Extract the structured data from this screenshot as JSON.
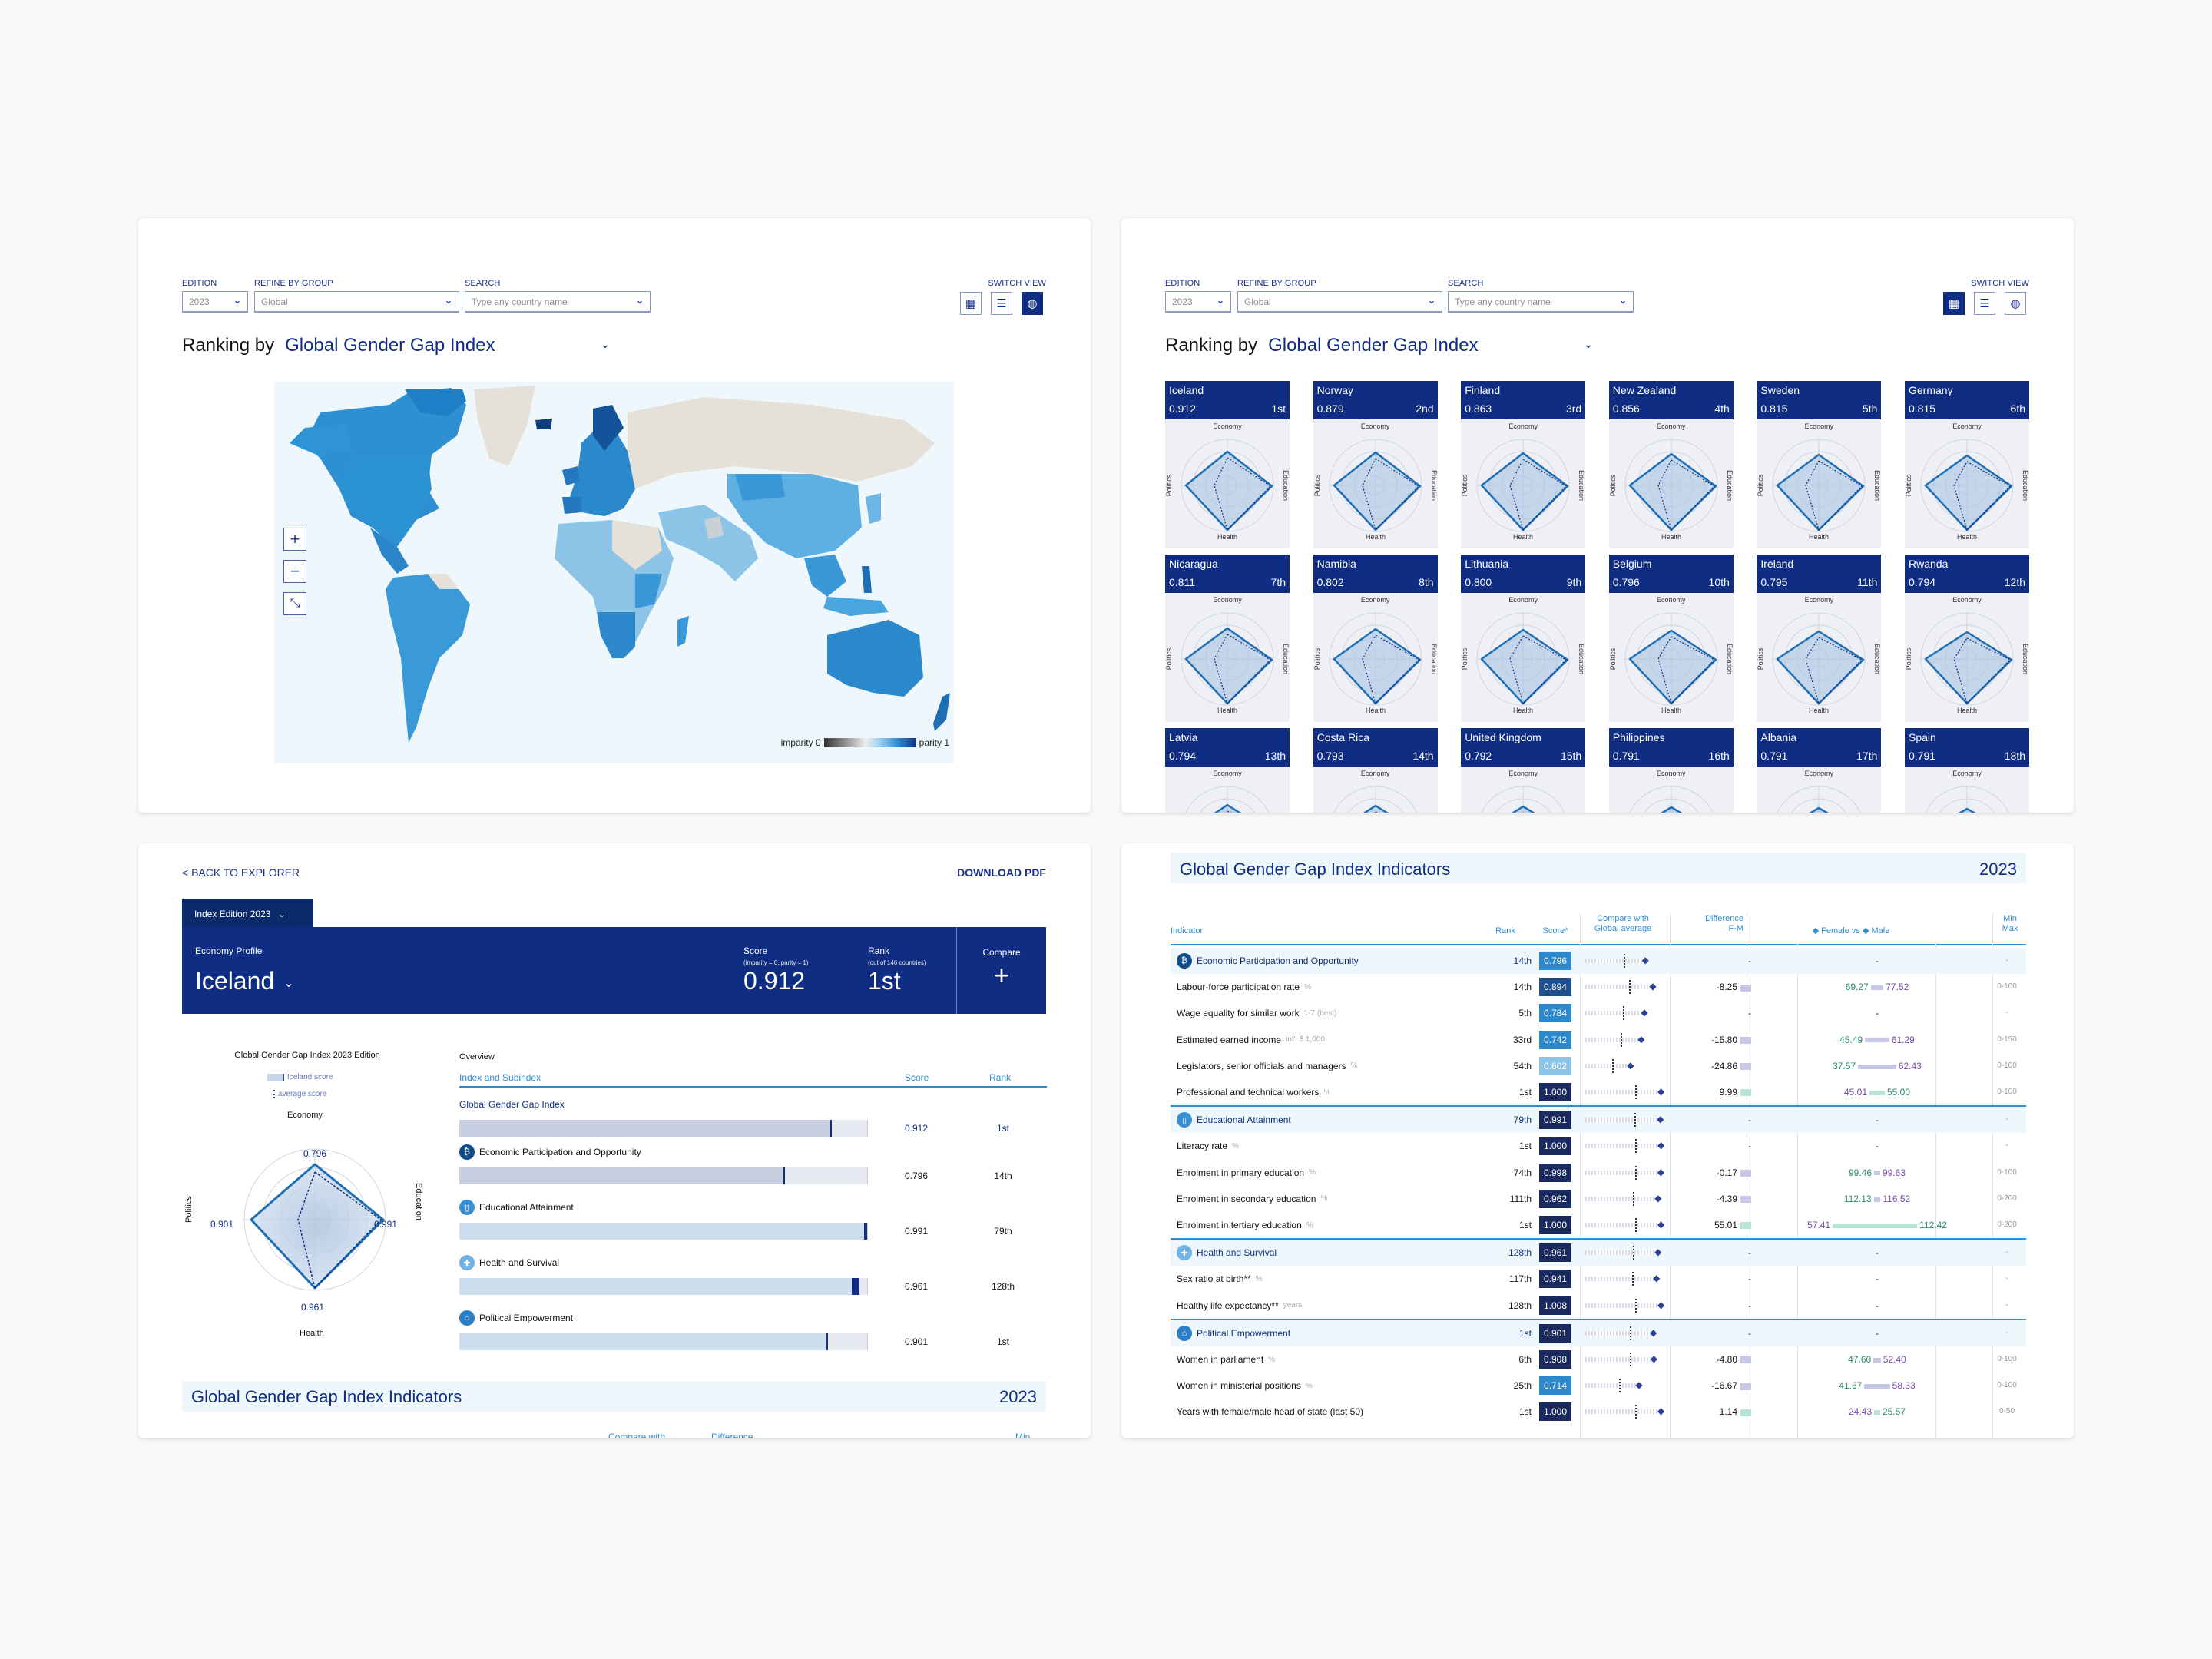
{
  "explorer": {
    "edition_label": "EDITION",
    "edition_value": "2023",
    "group_label": "REFINE BY GROUP",
    "group_value": "Global",
    "search_label": "SEARCH",
    "search_placeholder": "Type any country name",
    "switch_view_label": "SWITCH VIEW",
    "view_icons": [
      "grid-icon",
      "list-icon",
      "globe-icon"
    ],
    "ranking_prefix": "Ranking by",
    "ranking_value": "Global Gender Gap Index"
  },
  "map": {
    "legend_low": "imparity 0",
    "legend_high": "parity 1",
    "zoom_in": "+",
    "zoom_out": "−",
    "reset": "⤡",
    "colors": {
      "land_no_data": "#e6e1d8",
      "ocean": "#eef7fb",
      "high": "#0f4c8a",
      "mid": "#2b8fd6",
      "low": "#8cc4e8"
    }
  },
  "cards": [
    {
      "name": "Iceland",
      "score": "0.912",
      "rank": "1st"
    },
    {
      "name": "Norway",
      "score": "0.879",
      "rank": "2nd"
    },
    {
      "name": "Finland",
      "score": "0.863",
      "rank": "3rd"
    },
    {
      "name": "New Zealand",
      "score": "0.856",
      "rank": "4th"
    },
    {
      "name": "Sweden",
      "score": "0.815",
      "rank": "5th"
    },
    {
      "name": "Germany",
      "score": "0.815",
      "rank": "6th"
    },
    {
      "name": "Nicaragua",
      "score": "0.811",
      "rank": "7th"
    },
    {
      "name": "Namibia",
      "score": "0.802",
      "rank": "8th"
    },
    {
      "name": "Lithuania",
      "score": "0.800",
      "rank": "9th"
    },
    {
      "name": "Belgium",
      "score": "0.796",
      "rank": "10th"
    },
    {
      "name": "Ireland",
      "score": "0.795",
      "rank": "11th"
    },
    {
      "name": "Rwanda",
      "score": "0.794",
      "rank": "12th"
    },
    {
      "name": "Latvia",
      "score": "0.794",
      "rank": "13th"
    },
    {
      "name": "Costa Rica",
      "score": "0.793",
      "rank": "14th"
    },
    {
      "name": "United Kingdom",
      "score": "0.792",
      "rank": "15th"
    },
    {
      "name": "Philippines",
      "score": "0.791",
      "rank": "16th"
    },
    {
      "name": "Albania",
      "score": "0.791",
      "rank": "17th"
    },
    {
      "name": "Spain",
      "score": "0.791",
      "rank": "18th"
    }
  ],
  "radar_axes": {
    "top": "Economy",
    "right": "Education",
    "bottom": "Health",
    "left": "Politics"
  },
  "profile": {
    "back_link": "< BACK TO EXPLORER",
    "download": "DOWNLOAD PDF",
    "edition_tab": "Index Edition  2023",
    "economy_profile_label": "Economy Profile",
    "country": "Iceland",
    "score_label": "Score",
    "score_sub": "(imparity = 0, parity = 1)",
    "score_value": "0.912",
    "rank_label": "Rank",
    "rank_sub": "(out of 146 countries)",
    "rank_value": "1st",
    "compare_label": "Compare",
    "compare_icon": "+",
    "radar": {
      "title_bold": "Global Gender Gap Index",
      "title_rest": " 2023 Edition",
      "legend_country": "Iceland score",
      "legend_avg": "average score",
      "economy": "0.796",
      "education": "0.991",
      "health": "0.961",
      "politics": "0.901"
    },
    "overview": {
      "title": "Overview",
      "col_index": "Index and Subindex",
      "col_score": "Score",
      "col_rank": "Rank",
      "rows": [
        {
          "name": "Global Gender Gap Index",
          "score": "0.912",
          "rank": "1st"
        },
        {
          "name": "Economic Participation and Opportunity",
          "score": "0.796",
          "rank": "14th"
        },
        {
          "name": "Educational Attainment",
          "score": "0.991",
          "rank": "79th"
        },
        {
          "name": "Health and Survival",
          "score": "0.961",
          "rank": "128th"
        },
        {
          "name": "Political Empowerment",
          "score": "0.901",
          "rank": "1st"
        }
      ]
    },
    "indicators_title": "Global Gender Gap Index Indicators",
    "indicators_year": "2023",
    "peek_compare": "Compare with",
    "peek_diff": "Difference",
    "peek_min": "Min"
  },
  "indicators": {
    "title": "Global Gender Gap Index Indicators",
    "year": "2023",
    "headers": {
      "indicator": "Indicator",
      "rank": "Rank",
      "score": "Score*",
      "compare1": "Compare with",
      "compare2": "Global average",
      "diff1": "Difference",
      "diff2": "F-M",
      "fm": "◆ Female vs ◆ Male",
      "minmax1": "Min",
      "minmax2": "Max",
      "axis0": "0",
      "axis1": "1",
      "fm_min": "Min",
      "fm_max": "Max"
    },
    "rows": [
      {
        "group": true,
        "name": "Economic Participation and Opportunity",
        "rank": "14th",
        "score": "0.796",
        "diff": "-",
        "fm": "-",
        "mm": "-"
      },
      {
        "name": "Labour-force participation rate",
        "unit": "%",
        "rank": "14th",
        "score": "0.894",
        "diff": "-8.25",
        "female": "69.27",
        "male": "77.52",
        "mm": "0-100"
      },
      {
        "name": "Wage equality for similar work",
        "unit": "1-7 (best)",
        "rank": "5th",
        "score": "0.784",
        "diff": "-",
        "fm": "-",
        "mm": "-"
      },
      {
        "name": "Estimated earned income",
        "unit": "int'l $ 1,000",
        "rank": "33rd",
        "score": "0.742",
        "diff": "-15.80",
        "female": "45.49",
        "male": "61.29",
        "mm": "0-150"
      },
      {
        "name": "Legislators, senior officials and managers",
        "unit": "%",
        "rank": "54th",
        "score": "0.602",
        "diff": "-24.86",
        "female": "37.57",
        "male": "62.43",
        "mm": "0-100"
      },
      {
        "name": "Professional and technical workers",
        "unit": "%",
        "rank": "1st",
        "score": "1.000",
        "diff": "9.99",
        "female": "55.00",
        "male": "45.01",
        "mm": "0-100"
      },
      {
        "group": true,
        "name": "Educational Attainment",
        "rank": "79th",
        "score": "0.991",
        "diff": "-",
        "fm": "-",
        "mm": "-"
      },
      {
        "name": "Literacy rate",
        "unit": "%",
        "rank": "1st",
        "score": "1.000",
        "diff": "-",
        "fm": "-",
        "mm": "-"
      },
      {
        "name": "Enrolment in primary education",
        "unit": "%",
        "rank": "74th",
        "score": "0.998",
        "diff": "-0.17",
        "female": "99.46",
        "male": "99.63",
        "mm": "0-100"
      },
      {
        "name": "Enrolment in secondary education",
        "unit": "%",
        "rank": "111th",
        "score": "0.962",
        "diff": "-4.39",
        "female": "112.13",
        "male": "116.52",
        "mm": "0-200"
      },
      {
        "name": "Enrolment in tertiary education",
        "unit": "%",
        "rank": "1st",
        "score": "1.000",
        "diff": "55.01",
        "female": "112.42",
        "male": "57.41",
        "mm": "0-200"
      },
      {
        "group": true,
        "name": "Health and Survival",
        "rank": "128th",
        "score": "0.961",
        "diff": "-",
        "fm": "-",
        "mm": "-"
      },
      {
        "name": "Sex ratio at birth**",
        "unit": "%",
        "rank": "117th",
        "score": "0.941",
        "diff": "-",
        "fm": "-",
        "mm": "-"
      },
      {
        "name": "Healthy life expectancy**",
        "unit": "years",
        "rank": "128th",
        "score": "1.008",
        "diff": "-",
        "fm": "-",
        "mm": "-"
      },
      {
        "group": true,
        "name": "Political Empowerment",
        "rank": "1st",
        "score": "0.901",
        "diff": "-",
        "fm": "-",
        "mm": "-"
      },
      {
        "name": "Women in parliament",
        "unit": "%",
        "rank": "6th",
        "score": "0.908",
        "diff": "-4.80",
        "female": "47.60",
        "male": "52.40",
        "mm": "0-100"
      },
      {
        "name": "Women in ministerial positions",
        "unit": "%",
        "rank": "25th",
        "score": "0.714",
        "diff": "-16.67",
        "female": "41.67",
        "male": "58.33",
        "mm": "0-100"
      },
      {
        "name": "Years with female/male head of state (last 50)",
        "unit": "",
        "rank": "1st",
        "score": "1.000",
        "diff": "1.14",
        "female": "25.57",
        "male": "24.43",
        "mm": "0-50"
      }
    ]
  },
  "colors": {
    "navy": "#0f2d82",
    "accent": "#2b8fd6",
    "female": "#2a8a6a",
    "male": "#7a4aa8"
  }
}
